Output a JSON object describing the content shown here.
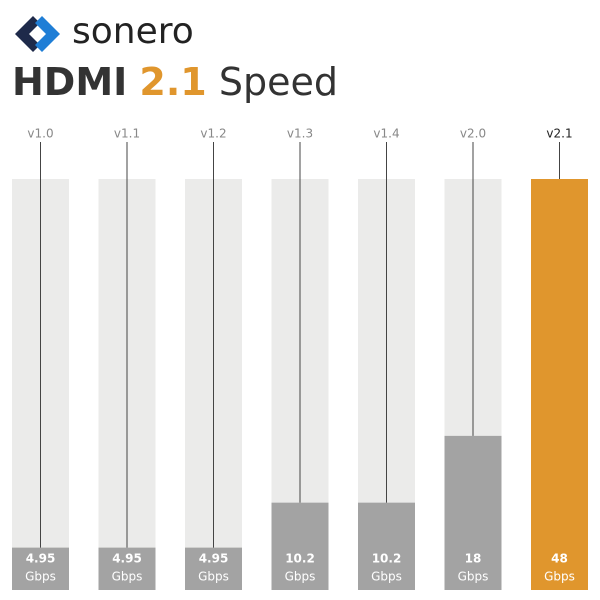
{
  "brand": "sonero",
  "chart_data": {
    "type": "bar",
    "title": [
      "HDMI",
      "2.1",
      "Speed"
    ],
    "categories": [
      "v1.0",
      "v1.1",
      "v1.2",
      "v1.3",
      "v1.4",
      "v2.0",
      "v2.1"
    ],
    "values": [
      4.95,
      4.95,
      4.95,
      10.2,
      10.2,
      18,
      48
    ],
    "unit": "Gbps",
    "colors": [
      "#a3a3a3",
      "#a3a3a3",
      "#a3a3a3",
      "#a3a3a3",
      "#a3a3a3",
      "#a3a3a3",
      "#e0962d"
    ],
    "track_color": "#ebebea",
    "ylim": [
      0,
      48
    ]
  }
}
